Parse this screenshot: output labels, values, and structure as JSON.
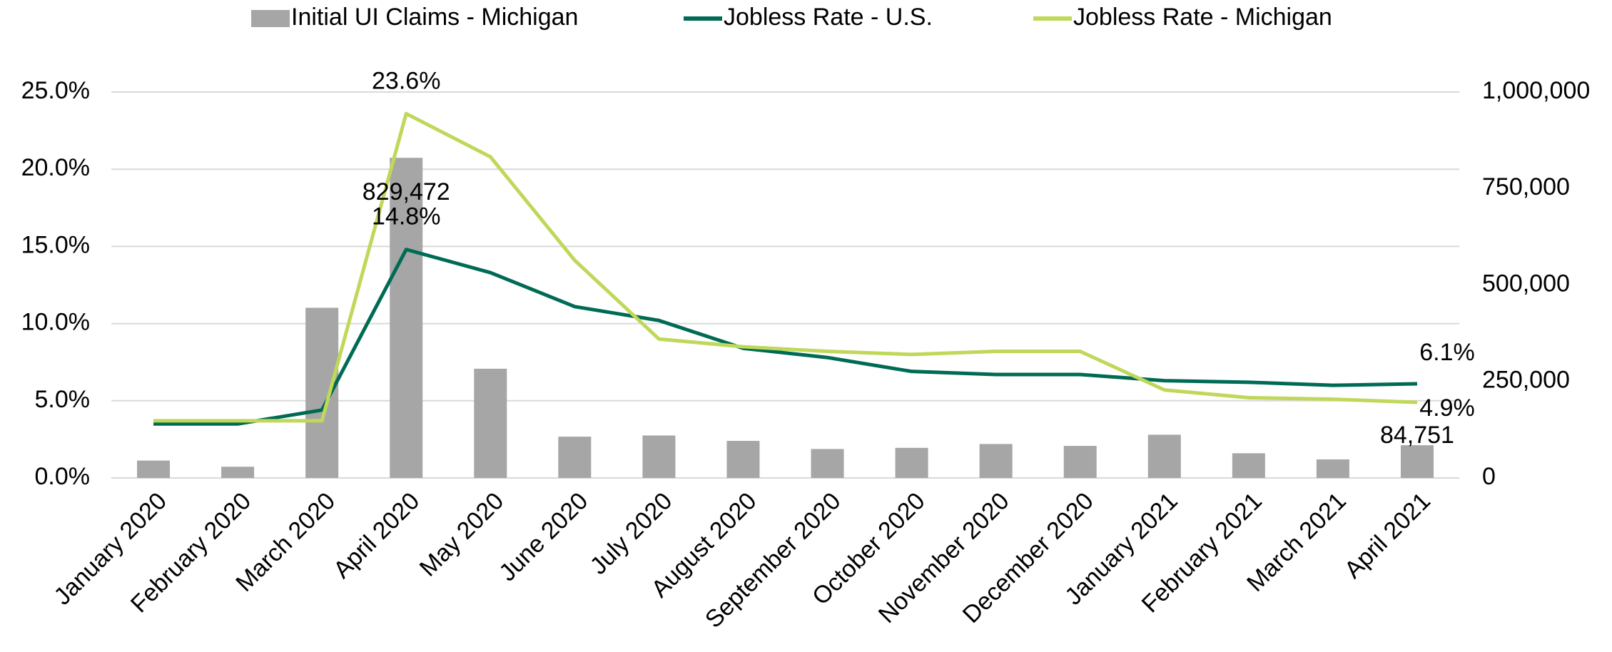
{
  "chart_data": {
    "type": "bar-line",
    "categories": [
      "January 2020",
      "February 2020",
      "March 2020",
      "April 2020",
      "May 2020",
      "June 2020",
      "July 2020",
      "August 2020",
      "September 2020",
      "October 2020",
      "November 2020",
      "December 2020",
      "January 2021",
      "February 2021",
      "March 2021",
      "April 2021"
    ],
    "series": [
      {
        "name": "Initial UI Claims - Michigan",
        "type": "bar",
        "axis": "y2",
        "color": "#a6a6a6",
        "values": [
          45000,
          29000,
          441000,
          829472,
          283000,
          107000,
          110000,
          96000,
          75000,
          78000,
          88000,
          83000,
          112000,
          64000,
          48000,
          84751
        ],
        "value_labels": [
          null,
          null,
          null,
          "829,472",
          null,
          null,
          null,
          null,
          null,
          null,
          null,
          null,
          null,
          null,
          null,
          "84,751"
        ]
      },
      {
        "name": "Jobless Rate - U.S.",
        "type": "line",
        "color": "#006b54",
        "values": [
          3.5,
          3.5,
          4.4,
          14.8,
          13.3,
          11.1,
          10.2,
          8.4,
          7.8,
          6.9,
          6.7,
          6.7,
          6.3,
          6.2,
          6.0,
          6.1
        ],
        "value_labels": [
          null,
          null,
          null,
          "14.8%",
          null,
          null,
          null,
          null,
          null,
          null,
          null,
          null,
          null,
          null,
          null,
          "6.1%"
        ]
      },
      {
        "name": "Jobless Rate - Michigan",
        "type": "line",
        "color": "#bfd85a",
        "values": [
          3.7,
          3.7,
          3.7,
          23.6,
          20.8,
          14.1,
          9.0,
          8.5,
          8.2,
          8.0,
          8.2,
          8.2,
          5.7,
          5.2,
          5.1,
          4.9
        ],
        "value_labels": [
          null,
          null,
          null,
          "23.6%",
          null,
          null,
          null,
          null,
          null,
          null,
          null,
          null,
          null,
          null,
          null,
          "4.9%"
        ]
      }
    ],
    "ylim": [
      0,
      25
    ],
    "yticks": [
      {
        "value": 0,
        "label": "0.0%"
      },
      {
        "value": 5,
        "label": "5.0%"
      },
      {
        "value": 10,
        "label": "10.0%"
      },
      {
        "value": 15,
        "label": "15.0%"
      },
      {
        "value": 20,
        "label": "20.0%"
      },
      {
        "value": 25,
        "label": "25.0%"
      }
    ],
    "y2lim": [
      0,
      1000000
    ],
    "y2ticks": [
      0,
      {
        "value": 250000,
        "label": "250,000"
      },
      {
        "value": 500000,
        "label": "500,000"
      },
      {
        "value": 750000,
        "label": "750,000"
      },
      {
        "value": 1000000,
        "label": "1,000,000"
      }
    ],
    "grid": true,
    "legend": "top"
  }
}
